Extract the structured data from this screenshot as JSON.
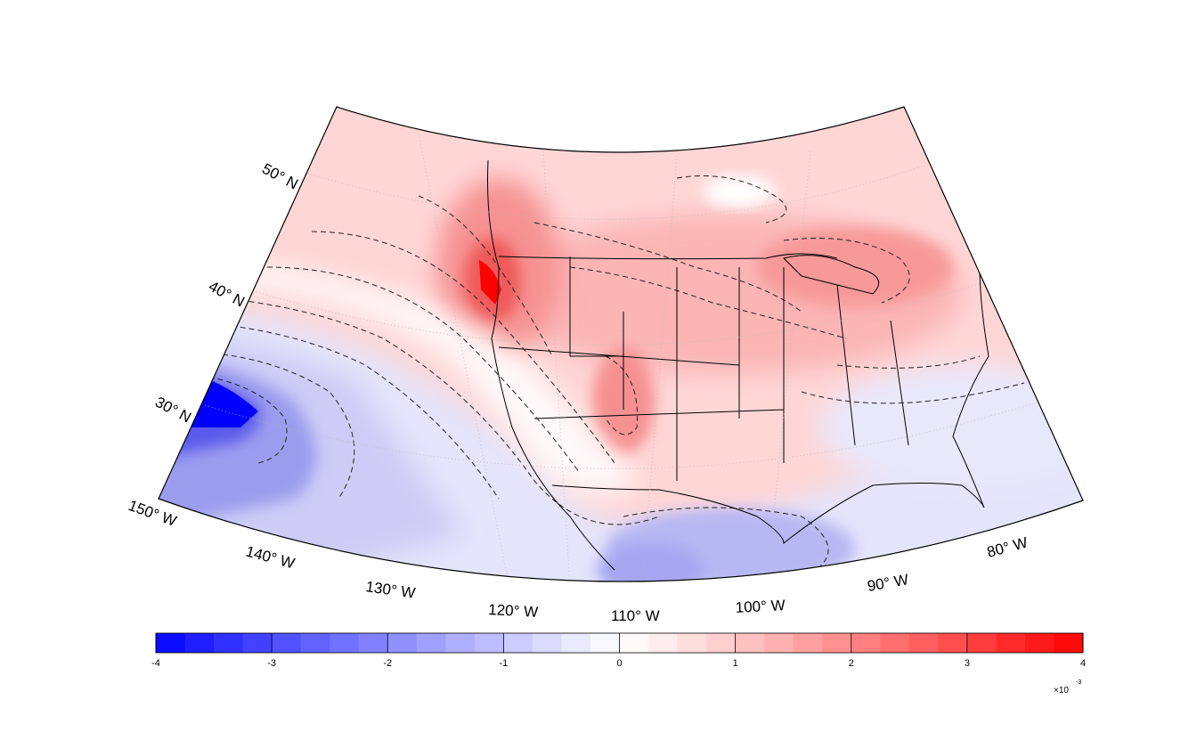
{
  "map": {
    "latitude_labels": [
      "50° N",
      "40° N",
      "30° N"
    ],
    "longitude_labels": [
      "150° W",
      "140° W",
      "130° W",
      "120° W",
      "110° W",
      "100° W",
      "90° W",
      "80° W"
    ]
  },
  "colorbar": {
    "tick_labels": [
      "-4",
      "-3",
      "-2",
      "-1",
      "0",
      "1",
      "2",
      "3",
      "4"
    ],
    "multiplier_label": "×10",
    "multiplier_exponent": "-3",
    "min": -4,
    "max": 4,
    "colors": {
      "negative_end": "#0000ff",
      "zero": "#ffffff",
      "positive_end": "#ff0000"
    }
  },
  "colors": {
    "outline": "#000000",
    "contour": "#222222"
  }
}
